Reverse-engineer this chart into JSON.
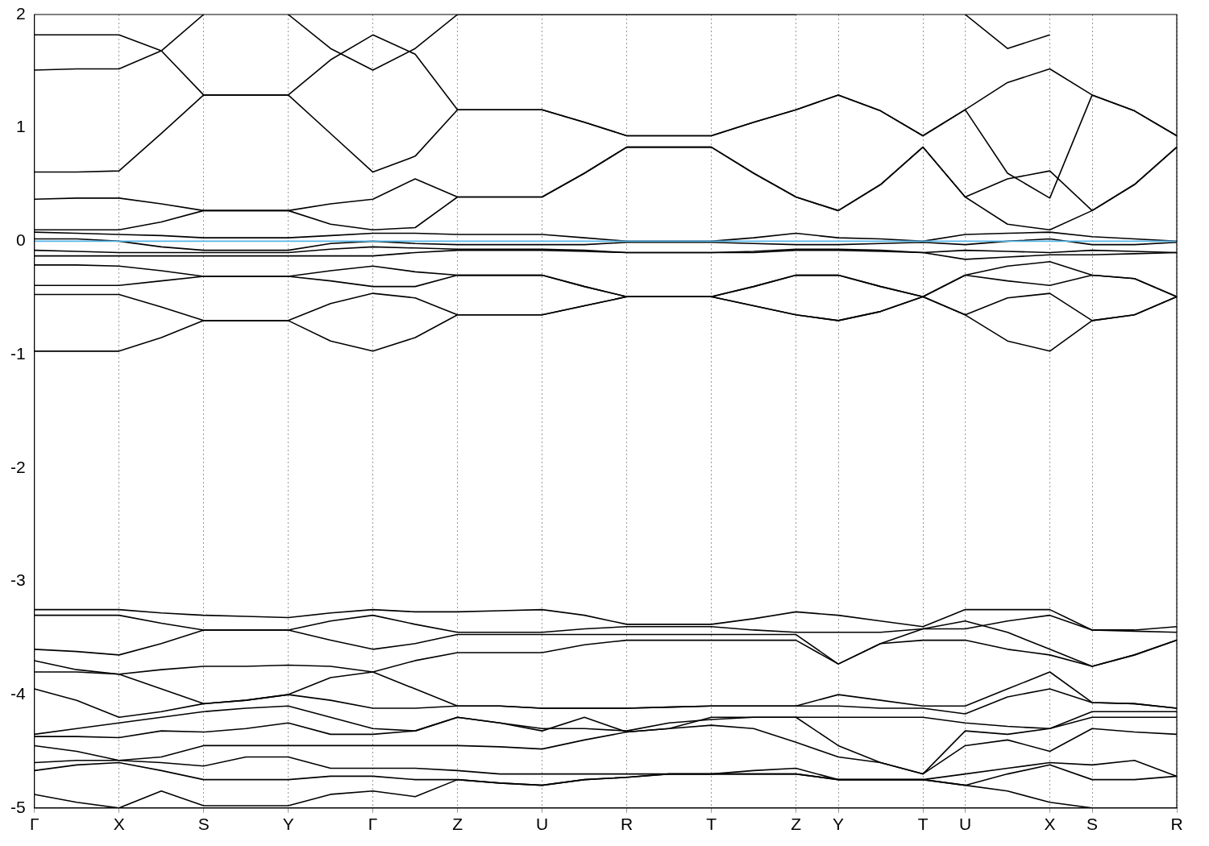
{
  "chart_data": {
    "type": "line",
    "categories": [
      "Γ",
      null,
      "X",
      null,
      "S",
      null,
      "Y",
      null,
      "Γ",
      null,
      "Z",
      null,
      "U",
      null,
      "R",
      null,
      "T",
      null,
      "Z",
      "Y",
      null,
      "T",
      "U",
      null,
      "X",
      "S",
      null,
      "R"
    ],
    "ylim": [
      -5,
      2
    ],
    "yticks": [
      -5,
      -4,
      -3,
      -2,
      -1,
      0,
      1,
      2
    ],
    "grid": "x",
    "legend": false,
    "marker": "none",
    "line_style": "solid",
    "ref_lines": [
      {
        "axis": "y",
        "value": 0,
        "color": "#59b4e6"
      }
    ],
    "series": [
      {
        "color": "#000000",
        "values": [
          0.1,
          0.1,
          0.1,
          0.17,
          0.27,
          0.27,
          0.27,
          0.15,
          0.1,
          0.12,
          0.39,
          0.39,
          0.39,
          0.6,
          0.83,
          0.83,
          0.83,
          0.6,
          0.39,
          0.27,
          0.5,
          0.83,
          0.39,
          0.15,
          0.1,
          0.27,
          0.5,
          0.83
        ]
      },
      {
        "color": "#000000",
        "values": [
          0.37,
          0.38,
          0.38,
          0.33,
          0.27,
          0.27,
          0.27,
          0.33,
          0.37,
          0.55,
          0.39,
          0.39,
          0.39,
          0.6,
          0.83,
          0.83,
          0.83,
          0.6,
          0.39,
          0.27,
          0.5,
          0.83,
          0.39,
          0.55,
          0.62,
          0.27,
          0.5,
          0.83
        ]
      },
      {
        "color": "#000000",
        "values": [
          0.61,
          0.61,
          0.62,
          0.95,
          1.29,
          1.29,
          1.29,
          0.95,
          0.61,
          0.75,
          1.16,
          1.16,
          1.16,
          1.05,
          0.93,
          0.93,
          0.93,
          1.05,
          1.16,
          1.29,
          1.15,
          0.93,
          1.16,
          0.6,
          0.38,
          1.29,
          1.15,
          0.93
        ]
      },
      {
        "color": "#000000",
        "values": [
          1.82,
          1.82,
          1.82,
          1.68,
          1.29,
          1.29,
          1.29,
          1.6,
          1.82,
          1.65,
          1.16,
          1.16,
          1.16,
          1.05,
          0.93,
          0.93,
          0.93,
          1.05,
          1.16,
          1.29,
          1.15,
          0.93,
          1.16,
          1.4,
          1.52,
          1.29,
          1.15,
          0.93
        ]
      },
      {
        "color": "#000000",
        "values": [
          1.51,
          1.52,
          1.52,
          1.68,
          2.0,
          null,
          2.0,
          1.7,
          1.51,
          1.7,
          2.0,
          2.0,
          2.0,
          2.0,
          2.0,
          2.0,
          2.0,
          2.0,
          2.0,
          null,
          null,
          null,
          2.0,
          1.7,
          1.82,
          null,
          null,
          null
        ]
      },
      {
        "color": "#000000",
        "values": [
          0.08,
          0.07,
          0.06,
          0.05,
          0.03,
          0.03,
          0.03,
          0.05,
          0.07,
          0.07,
          0.06,
          0.06,
          0.06,
          0.03,
          0.0,
          0.0,
          0.0,
          0.03,
          0.07,
          0.03,
          0.02,
          0.0,
          0.06,
          0.07,
          0.08,
          0.04,
          0.02,
          0.0
        ]
      },
      {
        "color": "#000000",
        "values": [
          0.02,
          0.02,
          0.0,
          -0.05,
          -0.08,
          -0.08,
          -0.08,
          -0.02,
          0.0,
          -0.02,
          -0.03,
          -0.03,
          -0.03,
          -0.03,
          -0.01,
          -0.01,
          -0.01,
          -0.02,
          -0.03,
          -0.03,
          -0.02,
          -0.01,
          -0.03,
          0.0,
          0.02,
          -0.03,
          -0.03,
          -0.01
        ]
      },
      {
        "color": "#000000",
        "values": [
          -0.08,
          -0.09,
          -0.1,
          -0.1,
          -0.1,
          -0.1,
          -0.1,
          -0.07,
          -0.05,
          -0.06,
          -0.07,
          -0.07,
          -0.07,
          -0.08,
          -0.1,
          -0.1,
          -0.1,
          -0.09,
          -0.07,
          -0.07,
          -0.08,
          -0.1,
          -0.08,
          -0.09,
          -0.1,
          -0.08,
          -0.09,
          -0.1
        ]
      },
      {
        "color": "#000000",
        "values": [
          -0.13,
          -0.13,
          -0.13,
          -0.13,
          -0.13,
          -0.13,
          -0.13,
          -0.13,
          -0.13,
          -0.1,
          -0.08,
          -0.08,
          -0.08,
          -0.09,
          -0.1,
          -0.1,
          -0.1,
          -0.1,
          -0.08,
          -0.08,
          -0.09,
          -0.1,
          -0.16,
          -0.14,
          -0.12,
          -0.12,
          -0.11,
          -0.1
        ]
      },
      {
        "color": "#000000",
        "values": [
          -0.21,
          -0.21,
          -0.22,
          -0.26,
          -0.31,
          -0.31,
          -0.31,
          -0.26,
          -0.22,
          -0.27,
          -0.3,
          -0.3,
          -0.3,
          -0.4,
          -0.49,
          -0.49,
          -0.49,
          -0.4,
          -0.3,
          -0.3,
          -0.4,
          -0.49,
          -0.3,
          -0.22,
          -0.18,
          -0.3,
          -0.33,
          -0.49
        ]
      },
      {
        "color": "#000000",
        "values": [
          -0.39,
          -0.39,
          -0.39,
          -0.35,
          -0.31,
          -0.31,
          -0.31,
          -0.35,
          -0.4,
          -0.4,
          -0.3,
          -0.3,
          -0.3,
          -0.4,
          -0.49,
          -0.49,
          -0.49,
          -0.4,
          -0.3,
          -0.3,
          -0.4,
          -0.49,
          -0.3,
          -0.35,
          -0.39,
          -0.3,
          -0.33,
          -0.49
        ]
      },
      {
        "color": "#000000",
        "values": [
          -0.47,
          -0.47,
          -0.47,
          -0.58,
          -0.7,
          -0.7,
          -0.7,
          -0.55,
          -0.46,
          -0.5,
          -0.65,
          -0.65,
          -0.65,
          -0.57,
          -0.49,
          -0.49,
          -0.49,
          -0.57,
          -0.65,
          -0.7,
          -0.62,
          -0.49,
          -0.65,
          -0.5,
          -0.46,
          -0.7,
          -0.65,
          -0.49
        ]
      },
      {
        "color": "#000000",
        "values": [
          -0.97,
          -0.97,
          -0.97,
          -0.85,
          -0.7,
          -0.7,
          -0.7,
          -0.88,
          -0.97,
          -0.85,
          -0.65,
          -0.65,
          -0.65,
          -0.57,
          -0.49,
          -0.49,
          -0.49,
          -0.57,
          -0.65,
          -0.7,
          -0.62,
          -0.49,
          -0.65,
          -0.88,
          -0.97,
          -0.7,
          -0.65,
          -0.49
        ]
      },
      {
        "color": "#000000",
        "values": [
          -3.25,
          -3.25,
          -3.25,
          -3.28,
          -3.3,
          -3.31,
          -3.32,
          -3.28,
          -3.25,
          -3.27,
          -3.27,
          -3.26,
          -3.25,
          -3.3,
          -3.38,
          -3.38,
          -3.38,
          -3.33,
          -3.27,
          -3.3,
          -3.35,
          -3.4,
          -3.25,
          -3.25,
          -3.25,
          -3.43,
          -3.43,
          -3.4
        ]
      },
      {
        "color": "#000000",
        "values": [
          -3.3,
          -3.3,
          -3.3,
          -3.37,
          -3.43,
          -3.43,
          -3.43,
          -3.35,
          -3.3,
          -3.38,
          -3.45,
          -3.45,
          -3.45,
          -3.42,
          -3.4,
          -3.4,
          -3.4,
          -3.43,
          -3.45,
          -3.45,
          -3.45,
          -3.42,
          -3.42,
          -3.35,
          -3.3,
          -3.43,
          -3.44,
          -3.45
        ]
      },
      {
        "color": "#000000",
        "values": [
          -3.6,
          -3.62,
          -3.65,
          -3.55,
          -3.43,
          -3.43,
          -3.43,
          -3.52,
          -3.6,
          -3.55,
          -3.47,
          -3.47,
          -3.47,
          -3.47,
          -3.47,
          -3.47,
          -3.47,
          -3.47,
          -3.47,
          -3.73,
          -3.55,
          -3.42,
          -3.35,
          -3.45,
          -3.6,
          -3.75,
          -3.65,
          -3.52
        ]
      },
      {
        "color": "#000000",
        "values": [
          -3.8,
          -3.8,
          -3.82,
          -3.78,
          -3.75,
          -3.75,
          -3.74,
          -3.75,
          -3.8,
          -3.7,
          -3.63,
          -3.63,
          -3.63,
          -3.56,
          -3.52,
          -3.52,
          -3.52,
          -3.52,
          -3.52,
          -3.73,
          -3.55,
          -3.52,
          -3.52,
          -3.6,
          -3.65,
          -3.75,
          -3.65,
          -3.52
        ]
      },
      {
        "color": "#000000",
        "values": [
          -3.7,
          -3.78,
          -3.82,
          -3.95,
          -4.08,
          -4.05,
          -4.0,
          -3.85,
          -3.8,
          -3.95,
          -4.1,
          -4.1,
          -4.12,
          -4.12,
          -4.12,
          -4.11,
          -4.1,
          -4.1,
          -4.1,
          -4.0,
          -4.05,
          -4.1,
          -4.1,
          -3.95,
          -3.8,
          -4.07,
          -4.08,
          -4.12
        ]
      },
      {
        "color": "#000000",
        "values": [
          -3.95,
          -4.05,
          -4.2,
          -4.15,
          -4.08,
          -4.05,
          -4.0,
          -4.05,
          -4.12,
          -4.12,
          -4.1,
          -4.1,
          -4.12,
          -4.12,
          -4.12,
          -4.11,
          -4.1,
          -4.1,
          -4.1,
          -4.1,
          -4.12,
          -4.12,
          -4.17,
          -4.02,
          -3.95,
          -4.07,
          -4.08,
          -4.12
        ]
      },
      {
        "color": "#000000",
        "values": [
          -4.35,
          -4.3,
          -4.25,
          -4.2,
          -4.15,
          -4.12,
          -4.1,
          -4.2,
          -4.3,
          -4.32,
          -4.2,
          -4.25,
          -4.3,
          -4.3,
          -4.32,
          -4.25,
          -4.22,
          -4.2,
          -4.2,
          -4.2,
          -4.2,
          -4.2,
          -4.25,
          -4.28,
          -4.3,
          -4.2,
          -4.2,
          -4.2
        ]
      },
      {
        "color": "#000000",
        "values": [
          -4.37,
          -4.37,
          -4.38,
          -4.32,
          -4.33,
          -4.3,
          -4.25,
          -4.35,
          -4.35,
          -4.32,
          -4.2,
          -4.25,
          -4.32,
          -4.2,
          -4.33,
          -4.3,
          -4.2,
          -4.2,
          -4.2,
          -4.45,
          -4.6,
          -4.7,
          -4.32,
          -4.35,
          -4.3,
          -4.15,
          -4.15,
          -4.15
        ]
      },
      {
        "color": "#000000",
        "values": [
          -4.45,
          -4.5,
          -4.58,
          -4.55,
          -4.45,
          -4.45,
          -4.45,
          -4.45,
          -4.45,
          -4.45,
          -4.45,
          -4.46,
          -4.48,
          -4.4,
          -4.33,
          -4.3,
          -4.27,
          -4.3,
          -4.42,
          -4.55,
          -4.6,
          -4.7,
          -4.45,
          -4.4,
          -4.5,
          -4.3,
          -4.33,
          -4.35
        ]
      },
      {
        "color": "#000000",
        "values": [
          -4.6,
          -4.58,
          -4.58,
          -4.6,
          -4.63,
          -4.55,
          -4.55,
          -4.65,
          -4.65,
          -4.65,
          -4.67,
          -4.7,
          -4.7,
          -4.7,
          -4.7,
          -4.7,
          -4.7,
          -4.67,
          -4.65,
          -4.75,
          -4.75,
          -4.75,
          -4.7,
          -4.65,
          -4.6,
          -4.62,
          -4.58,
          -4.72
        ]
      },
      {
        "color": "#000000",
        "values": [
          -4.67,
          -4.62,
          -4.6,
          -4.67,
          -4.75,
          -4.75,
          -4.75,
          -4.72,
          -4.72,
          -4.75,
          -4.75,
          -4.78,
          -4.8,
          -4.75,
          -4.73,
          -4.7,
          -4.7,
          -4.7,
          -4.7,
          -4.75,
          -4.75,
          -4.75,
          -4.8,
          -4.7,
          -4.62,
          -4.75,
          -4.75,
          -4.72
        ]
      },
      {
        "color": "#000000",
        "values": [
          -4.88,
          -4.95,
          -5.0,
          -4.85,
          -4.98,
          -4.98,
          -4.98,
          -4.88,
          -4.85,
          -4.9,
          -4.75,
          -4.78,
          -4.8,
          -4.75,
          -4.73,
          -4.7,
          -4.7,
          -4.7,
          -4.7,
          -4.75,
          -4.75,
          -4.75,
          -4.8,
          -4.85,
          -4.95,
          -5.0,
          null,
          null
        ]
      }
    ]
  }
}
